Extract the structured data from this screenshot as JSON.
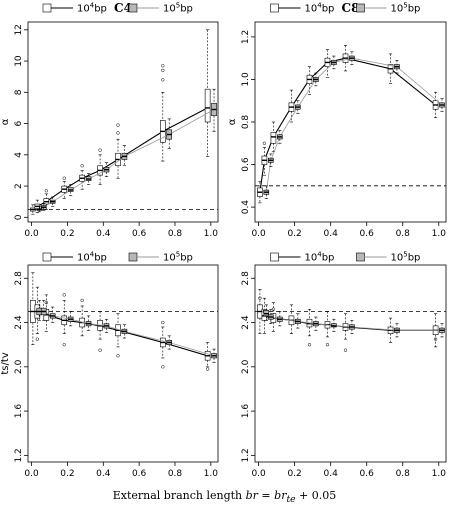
{
  "figure": {
    "caption_prefix": "External branch length ",
    "caption_formula": "br = br",
    "caption_sub": "te",
    "caption_suffix": " + 0.05"
  },
  "chart_data": [
    {
      "id": "c4-alpha",
      "type": "box",
      "title": "C4",
      "ylabel": "α",
      "xlim": [
        -0.02,
        1.04
      ],
      "ylim": [
        -0.3,
        12.5
      ],
      "xticks": [
        0.0,
        0.2,
        0.4,
        0.6,
        0.8,
        1.0
      ],
      "xtick_labels": [
        "0.0",
        "0.2",
        "0.4",
        "0.6",
        "0.8",
        "1.0"
      ],
      "yticks": [
        0,
        2,
        4,
        6,
        8,
        10,
        12
      ],
      "ytick_labels": [
        "0",
        "2",
        "4",
        "6",
        "8",
        "10",
        "12"
      ],
      "reference_line": 0.5,
      "legend": {
        "position": "top",
        "entries": [
          "10^4bp",
          "10^5bp"
        ]
      },
      "x": [
        0.025,
        0.05,
        0.1,
        0.2,
        0.3,
        0.4,
        0.5,
        0.75,
        1.0
      ],
      "series": [
        {
          "name": "10^4bp",
          "medians": [
            0.5,
            0.7,
            1.0,
            1.8,
            2.5,
            3.0,
            3.7,
            5.5,
            7.0
          ],
          "q1": [
            0.4,
            0.55,
            0.85,
            1.6,
            2.3,
            2.7,
            3.3,
            4.8,
            6.1
          ],
          "q3": [
            0.6,
            0.85,
            1.2,
            2.0,
            2.7,
            3.3,
            4.1,
            6.2,
            8.2
          ],
          "lo": [
            0.2,
            0.3,
            0.5,
            1.2,
            1.8,
            2.1,
            2.5,
            3.6,
            3.9
          ],
          "hi": [
            0.8,
            1.1,
            1.5,
            2.3,
            3.0,
            4.0,
            5.0,
            8.0,
            12.0
          ],
          "outliers": [
            [],
            [],
            [
              1.7
            ],
            [
              2.5
            ],
            [
              3.3
            ],
            [
              4.3
            ],
            [
              5.4,
              5.9
            ],
            [
              8.8,
              9.4,
              9.7
            ],
            []
          ]
        },
        {
          "name": "10^5bp",
          "medians": [
            0.5,
            0.65,
            1.0,
            1.75,
            2.45,
            3.05,
            3.9,
            5.3,
            6.9
          ],
          "q1": [
            0.45,
            0.6,
            0.9,
            1.65,
            2.35,
            2.9,
            3.7,
            5.0,
            6.5
          ],
          "q3": [
            0.55,
            0.75,
            1.1,
            1.9,
            2.6,
            3.2,
            4.1,
            5.6,
            7.3
          ],
          "lo": [
            0.35,
            0.45,
            0.7,
            1.4,
            2.1,
            2.6,
            3.3,
            4.4,
            5.5
          ],
          "hi": [
            0.7,
            0.9,
            1.3,
            2.1,
            2.8,
            3.5,
            4.6,
            6.3,
            8.2
          ],
          "outliers": [
            [],
            [],
            [],
            [],
            [],
            [],
            [],
            [],
            []
          ]
        }
      ]
    },
    {
      "id": "c8-alpha",
      "type": "box",
      "title": "C8",
      "ylabel": "α",
      "xlim": [
        -0.02,
        1.04
      ],
      "ylim": [
        0.33,
        1.27
      ],
      "xticks": [
        0.0,
        0.2,
        0.4,
        0.6,
        0.8,
        1.0
      ],
      "xtick_labels": [
        "0.0",
        "0.2",
        "0.4",
        "0.6",
        "0.8",
        "1.0"
      ],
      "yticks": [
        0.4,
        0.6,
        0.8,
        1.0,
        1.2
      ],
      "ytick_labels": [
        "0.4",
        "0.6",
        "0.8",
        "1.0",
        "1.2"
      ],
      "reference_line": 0.5,
      "legend": {
        "position": "top",
        "entries": [
          "10^4bp",
          "10^5bp"
        ]
      },
      "x": [
        0.025,
        0.05,
        0.1,
        0.2,
        0.3,
        0.4,
        0.5,
        0.75,
        1.0
      ],
      "series": [
        {
          "name": "10^4bp",
          "medians": [
            0.47,
            0.62,
            0.73,
            0.87,
            1.0,
            1.08,
            1.1,
            1.05,
            0.88
          ],
          "q1": [
            0.45,
            0.6,
            0.7,
            0.85,
            0.98,
            1.06,
            1.08,
            1.03,
            0.86
          ],
          "q3": [
            0.49,
            0.64,
            0.75,
            0.89,
            1.02,
            1.1,
            1.12,
            1.07,
            0.9
          ],
          "lo": [
            0.42,
            0.55,
            0.66,
            0.8,
            0.93,
            1.01,
            1.04,
            0.98,
            0.82
          ],
          "hi": [
            0.52,
            0.68,
            0.8,
            0.95,
            1.06,
            1.14,
            1.16,
            1.12,
            0.94
          ],
          "outliers": [
            [],
            [
              0.7
            ],
            [],
            [],
            [],
            [],
            [],
            [],
            []
          ]
        },
        {
          "name": "10^5bp",
          "medians": [
            0.47,
            0.62,
            0.73,
            0.87,
            1.0,
            1.08,
            1.1,
            1.06,
            0.88
          ],
          "q1": [
            0.46,
            0.61,
            0.72,
            0.86,
            0.99,
            1.07,
            1.09,
            1.05,
            0.87
          ],
          "q3": [
            0.48,
            0.63,
            0.74,
            0.88,
            1.01,
            1.09,
            1.11,
            1.07,
            0.89
          ],
          "lo": [
            0.44,
            0.59,
            0.7,
            0.84,
            0.97,
            1.05,
            1.07,
            1.03,
            0.85
          ],
          "hi": [
            0.5,
            0.65,
            0.76,
            0.9,
            1.03,
            1.11,
            1.13,
            1.09,
            0.91
          ],
          "outliers": [
            [],
            [],
            [],
            [],
            [],
            [],
            [],
            [],
            []
          ]
        }
      ]
    },
    {
      "id": "c4-tstv",
      "type": "box",
      "title": "",
      "ylabel": "ts/tv",
      "xlim": [
        -0.02,
        1.04
      ],
      "ylim": [
        1.14,
        2.92
      ],
      "xticks": [
        0.0,
        0.2,
        0.4,
        0.6,
        0.8,
        1.0
      ],
      "xtick_labels": [
        "0.0",
        "0.2",
        "0.4",
        "0.6",
        "0.8",
        "1.0"
      ],
      "yticks": [
        1.2,
        1.6,
        2.0,
        2.4,
        2.8
      ],
      "ytick_labels": [
        "1.2",
        "1.6",
        "2.0",
        "2.4",
        "2.8"
      ],
      "reference_line": 2.5,
      "legend": {
        "position": "top",
        "entries": [
          "10^4bp",
          "10^5bp"
        ]
      },
      "x": [
        0.025,
        0.05,
        0.1,
        0.2,
        0.3,
        0.4,
        0.5,
        0.75,
        1.0
      ],
      "series": [
        {
          "name": "10^4bp",
          "medians": [
            2.5,
            2.5,
            2.47,
            2.42,
            2.4,
            2.37,
            2.33,
            2.22,
            2.1
          ],
          "q1": [
            2.4,
            2.44,
            2.42,
            2.38,
            2.36,
            2.33,
            2.28,
            2.18,
            2.06
          ],
          "q3": [
            2.6,
            2.56,
            2.52,
            2.46,
            2.44,
            2.42,
            2.38,
            2.26,
            2.14
          ],
          "lo": [
            2.2,
            2.3,
            2.32,
            2.3,
            2.28,
            2.25,
            2.18,
            2.08,
            2.0
          ],
          "hi": [
            2.85,
            2.72,
            2.65,
            2.6,
            2.55,
            2.5,
            2.48,
            2.36,
            2.22
          ],
          "outliers": [
            [],
            [
              2.25
            ],
            [
              2.58
            ],
            [
              2.65,
              2.2
            ],
            [
              2.6
            ],
            [
              2.15
            ],
            [
              2.1
            ],
            [
              2.0,
              2.4
            ],
            [
              1.98
            ]
          ]
        },
        {
          "name": "10^5bp",
          "medians": [
            2.5,
            2.5,
            2.46,
            2.43,
            2.39,
            2.37,
            2.32,
            2.22,
            2.1
          ],
          "q1": [
            2.47,
            2.47,
            2.44,
            2.41,
            2.37,
            2.35,
            2.3,
            2.2,
            2.08
          ],
          "q3": [
            2.53,
            2.53,
            2.48,
            2.45,
            2.41,
            2.39,
            2.34,
            2.24,
            2.12
          ],
          "lo": [
            2.42,
            2.42,
            2.4,
            2.37,
            2.33,
            2.31,
            2.26,
            2.16,
            2.04
          ],
          "hi": [
            2.6,
            2.6,
            2.54,
            2.5,
            2.46,
            2.43,
            2.38,
            2.28,
            2.16
          ],
          "outliers": [
            [],
            [],
            [],
            [],
            [],
            [],
            [],
            [],
            []
          ]
        }
      ]
    },
    {
      "id": "c8-tstv",
      "type": "box",
      "title": "",
      "ylabel": "",
      "xlim": [
        -0.02,
        1.04
      ],
      "ylim": [
        1.14,
        2.92
      ],
      "xticks": [
        0.0,
        0.2,
        0.4,
        0.6,
        0.8,
        1.0
      ],
      "xtick_labels": [
        "0.0",
        "0.2",
        "0.4",
        "0.6",
        "0.8",
        "1.0"
      ],
      "yticks": [
        1.2,
        1.6,
        2.0,
        2.4,
        2.8
      ],
      "ytick_labels": [
        "1.2",
        "1.6",
        "2.0",
        "2.4",
        "2.8"
      ],
      "reference_line": 2.5,
      "legend": {
        "position": "top",
        "entries": [
          "10^4bp",
          "10^5bp"
        ]
      },
      "x": [
        0.025,
        0.05,
        0.1,
        0.2,
        0.3,
        0.4,
        0.5,
        0.75,
        1.0
      ],
      "series": [
        {
          "name": "10^4bp",
          "medians": [
            2.5,
            2.46,
            2.44,
            2.42,
            2.39,
            2.38,
            2.36,
            2.33,
            2.33
          ],
          "q1": [
            2.44,
            2.42,
            2.4,
            2.38,
            2.36,
            2.35,
            2.33,
            2.3,
            2.29
          ],
          "q3": [
            2.56,
            2.52,
            2.48,
            2.46,
            2.43,
            2.41,
            2.39,
            2.36,
            2.37
          ],
          "lo": [
            2.3,
            2.3,
            2.32,
            2.3,
            2.28,
            2.27,
            2.25,
            2.22,
            2.18
          ],
          "hi": [
            2.7,
            2.62,
            2.58,
            2.56,
            2.52,
            2.5,
            2.48,
            2.44,
            2.48
          ],
          "outliers": [
            [
              2.62
            ],
            [
              2.5
            ],
            [
              2.52
            ],
            [],
            [
              2.2
            ],
            [
              2.2
            ],
            [
              2.15
            ],
            [],
            [
              2.25
            ]
          ]
        },
        {
          "name": "10^5bp",
          "medians": [
            2.48,
            2.45,
            2.43,
            2.41,
            2.39,
            2.37,
            2.36,
            2.33,
            2.33
          ],
          "q1": [
            2.46,
            2.43,
            2.41,
            2.39,
            2.37,
            2.36,
            2.34,
            2.31,
            2.31
          ],
          "q3": [
            2.51,
            2.47,
            2.45,
            2.43,
            2.41,
            2.39,
            2.38,
            2.35,
            2.35
          ],
          "lo": [
            2.42,
            2.39,
            2.37,
            2.35,
            2.33,
            2.32,
            2.3,
            2.27,
            2.27
          ],
          "hi": [
            2.56,
            2.52,
            2.5,
            2.48,
            2.45,
            2.43,
            2.42,
            2.39,
            2.39
          ],
          "outliers": [
            [],
            [],
            [],
            [],
            [],
            [],
            [],
            [],
            []
          ]
        }
      ]
    }
  ]
}
